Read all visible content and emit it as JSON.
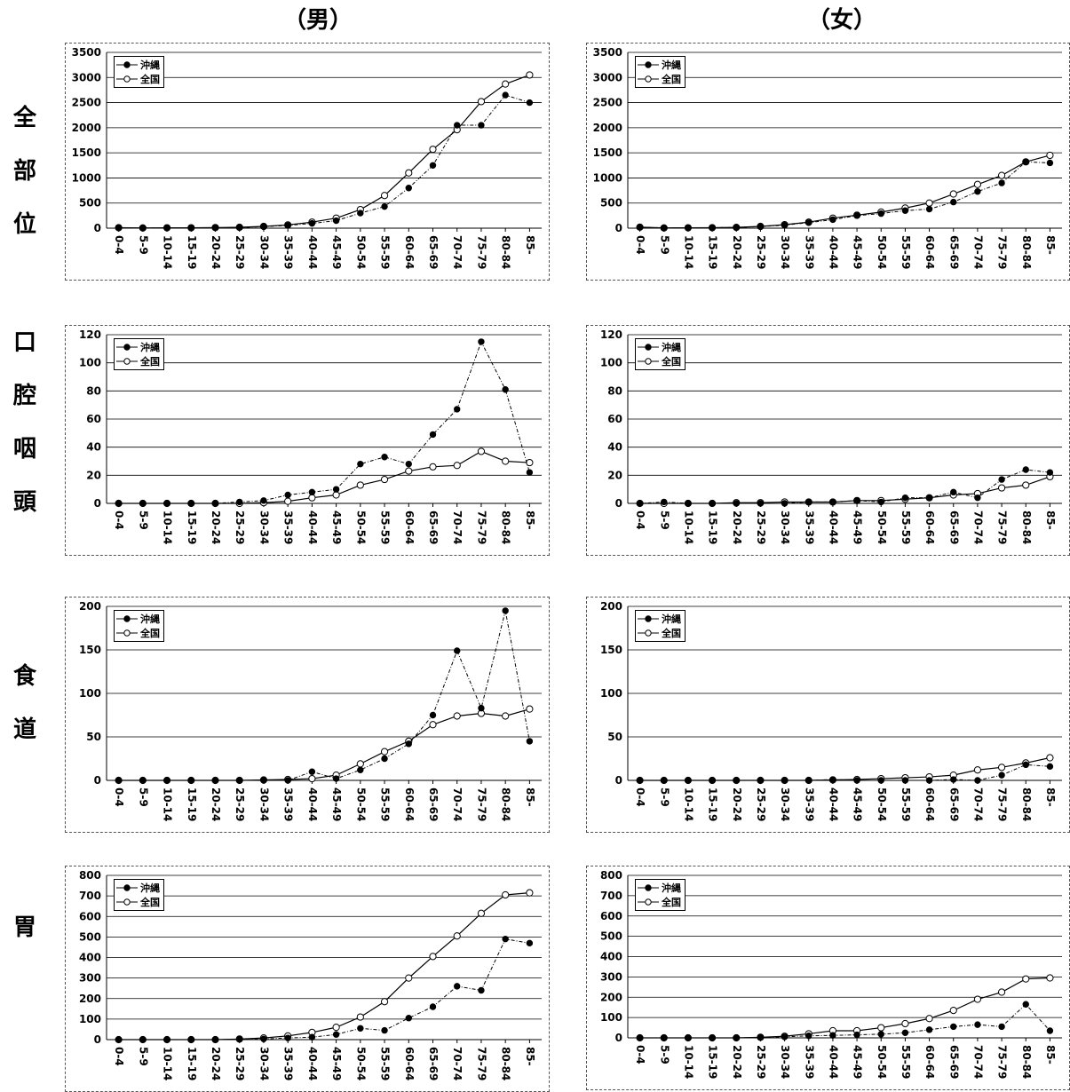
{
  "headers": {
    "male": "（男）",
    "female": "（女）"
  },
  "rows": [
    {
      "id": "all",
      "label": [
        "全",
        "部",
        "位"
      ]
    },
    {
      "id": "oral",
      "label": [
        "口",
        "腔",
        "咽",
        "頭"
      ]
    },
    {
      "id": "eso",
      "label": [
        "食",
        "道"
      ]
    },
    {
      "id": "stom",
      "label": [
        "胃"
      ]
    }
  ],
  "legend": {
    "okinawa": "沖縄",
    "national": "全国"
  },
  "colors": {
    "line": "#000000",
    "grid": "#000000",
    "okinawa_marker": "#000000",
    "national_marker": "#ffffff"
  },
  "chart_data": [
    {
      "id": "all-male",
      "type": "line",
      "categories": [
        "0-4",
        "5-9",
        "10-14",
        "15-19",
        "20-24",
        "25-29",
        "30-34",
        "35-39",
        "40-44",
        "45-49",
        "50-54",
        "55-59",
        "60-64",
        "65-69",
        "70-74",
        "75-79",
        "80-84",
        "85-"
      ],
      "ylim": [
        0,
        3500
      ],
      "yticks": [
        0,
        500,
        1000,
        1500,
        2000,
        2500,
        3000,
        3500
      ],
      "grid": true,
      "legend_position": "top-left",
      "series": [
        {
          "name": "沖縄",
          "values": [
            5,
            3,
            5,
            5,
            8,
            12,
            30,
            55,
            95,
            150,
            300,
            430,
            800,
            1250,
            2050,
            2050,
            2650,
            2500
          ]
        },
        {
          "name": "全国",
          "values": [
            10,
            5,
            8,
            8,
            12,
            18,
            35,
            65,
            120,
            200,
            370,
            650,
            1100,
            1570,
            1960,
            2520,
            2870,
            3050
          ]
        }
      ]
    },
    {
      "id": "all-female",
      "type": "line",
      "categories": [
        "0-4",
        "5-9",
        "10-14",
        "15-19",
        "20-24",
        "25-29",
        "30-34",
        "35-39",
        "40-44",
        "45-49",
        "50-54",
        "55-59",
        "60-64",
        "65-69",
        "70-74",
        "75-79",
        "80-84",
        "85-"
      ],
      "ylim": [
        0,
        3500
      ],
      "yticks": [
        0,
        500,
        1000,
        1500,
        2000,
        2500,
        3000,
        3500
      ],
      "grid": true,
      "legend_position": "top-left",
      "series": [
        {
          "name": "沖縄",
          "values": [
            20,
            5,
            8,
            10,
            15,
            30,
            60,
            110,
            170,
            250,
            290,
            350,
            380,
            520,
            730,
            900,
            1320,
            1300
          ]
        },
        {
          "name": "全国",
          "values": [
            20,
            5,
            8,
            10,
            15,
            35,
            70,
            120,
            200,
            260,
            320,
            400,
            500,
            680,
            870,
            1050,
            1320,
            1450
          ]
        }
      ]
    },
    {
      "id": "oral-male",
      "type": "line",
      "categories": [
        "0-4",
        "5-9",
        "10-14",
        "15-19",
        "20-24",
        "25-29",
        "30-34",
        "35-39",
        "40-44",
        "45-49",
        "50-54",
        "55-59",
        "60-64",
        "65-69",
        "70-74",
        "75-79",
        "80-84",
        "85-"
      ],
      "ylim": [
        0,
        120
      ],
      "yticks": [
        0,
        20,
        40,
        60,
        80,
        100,
        120
      ],
      "grid": true,
      "legend_position": "top-left",
      "series": [
        {
          "name": "沖縄",
          "values": [
            0,
            0,
            0,
            0,
            0,
            1,
            2,
            6,
            8,
            10,
            28,
            33,
            28,
            49,
            67,
            115,
            81,
            22
          ]
        },
        {
          "name": "全国",
          "values": [
            0,
            0,
            0,
            0,
            0,
            0,
            0.5,
            1.5,
            4,
            6,
            13,
            17,
            23,
            26,
            27,
            37,
            30,
            29
          ]
        }
      ]
    },
    {
      "id": "oral-female",
      "type": "line",
      "categories": [
        "0-4",
        "5-9",
        "10-14",
        "15-19",
        "20-24",
        "25-29",
        "30-34",
        "35-39",
        "40-44",
        "45-49",
        "50-54",
        "55-59",
        "60-64",
        "65-69",
        "70-74",
        "75-79",
        "80-84",
        "85-"
      ],
      "ylim": [
        0,
        120
      ],
      "yticks": [
        0,
        20,
        40,
        60,
        80,
        100,
        120
      ],
      "grid": true,
      "legend_position": "top-left",
      "series": [
        {
          "name": "沖縄",
          "values": [
            0,
            1,
            0,
            0,
            0,
            0,
            0,
            1,
            1,
            2,
            1,
            4,
            4,
            8,
            4,
            17,
            24,
            22
          ]
        },
        {
          "name": "全国",
          "values": [
            0,
            0,
            0,
            0,
            0.5,
            0.5,
            1,
            1,
            1,
            2,
            2,
            3,
            4,
            6,
            7,
            11,
            13,
            19
          ]
        }
      ]
    },
    {
      "id": "eso-male",
      "type": "line",
      "categories": [
        "0-4",
        "5-9",
        "10-14",
        "15-19",
        "20-24",
        "25-29",
        "30-34",
        "35-39",
        "40-44",
        "45-49",
        "50-54",
        "55-59",
        "60-64",
        "65-69",
        "70-74",
        "75-79",
        "80-84",
        "85-"
      ],
      "ylim": [
        0,
        200
      ],
      "yticks": [
        0,
        50,
        100,
        150,
        200
      ],
      "grid": true,
      "legend_position": "top-left",
      "series": [
        {
          "name": "沖縄",
          "values": [
            0,
            0,
            0,
            0,
            0,
            0,
            0,
            0,
            10,
            2,
            12,
            25,
            42,
            75,
            149,
            83,
            195,
            45
          ]
        },
        {
          "name": "全国",
          "values": [
            0,
            0,
            0,
            0,
            0,
            0,
            0.5,
            1,
            2,
            6,
            19,
            33,
            45,
            64,
            74,
            77,
            74,
            82
          ]
        }
      ]
    },
    {
      "id": "eso-female",
      "type": "line",
      "categories": [
        "0-4",
        "5-9",
        "10-14",
        "15-19",
        "20-24",
        "25-29",
        "30-34",
        "35-39",
        "40-44",
        "45-49",
        "50-54",
        "55-59",
        "60-64",
        "65-69",
        "70-74",
        "75-79",
        "80-84",
        "85-"
      ],
      "ylim": [
        0,
        200
      ],
      "yticks": [
        0,
        50,
        100,
        150,
        200
      ],
      "grid": true,
      "legend_position": "top-left",
      "series": [
        {
          "name": "沖縄",
          "values": [
            0,
            0,
            0,
            0,
            0,
            0,
            0,
            0,
            1,
            0,
            0,
            0,
            0,
            1,
            0,
            6,
            18,
            16
          ]
        },
        {
          "name": "全国",
          "values": [
            0,
            0,
            0,
            0,
            0,
            0,
            0,
            0,
            0.5,
            1,
            2,
            3,
            4,
            6,
            12,
            15,
            20,
            26
          ]
        }
      ]
    },
    {
      "id": "stom-male",
      "type": "line",
      "categories": [
        "0-4",
        "5-9",
        "10-14",
        "15-19",
        "20-24",
        "25-29",
        "30-34",
        "35-39",
        "40-44",
        "45-49",
        "50-54",
        "55-59",
        "60-64",
        "65-69",
        "70-74",
        "75-79",
        "80-84",
        "85-"
      ],
      "ylim": [
        0,
        800
      ],
      "yticks": [
        0,
        100,
        200,
        300,
        400,
        500,
        600,
        700,
        800
      ],
      "grid": true,
      "legend_position": "top-left",
      "series": [
        {
          "name": "沖縄",
          "values": [
            0,
            0,
            0,
            0,
            0,
            2,
            3,
            8,
            12,
            25,
            55,
            45,
            105,
            160,
            260,
            240,
            490,
            470
          ]
        },
        {
          "name": "全国",
          "values": [
            0,
            0,
            0,
            0,
            0,
            3,
            8,
            18,
            35,
            60,
            110,
            185,
            300,
            405,
            505,
            615,
            705,
            715
          ]
        }
      ]
    },
    {
      "id": "stom-female",
      "type": "line",
      "categories": [
        "0-4",
        "5-9",
        "10-14",
        "15-19",
        "20-24",
        "25-29",
        "30-34",
        "35-39",
        "40-44",
        "45-49",
        "50-54",
        "55-59",
        "60-64",
        "65-69",
        "70-74",
        "75-79",
        "80-84",
        "85-"
      ],
      "ylim": [
        0,
        800
      ],
      "yticks": [
        0,
        100,
        200,
        300,
        400,
        500,
        600,
        700,
        800
      ],
      "grid": true,
      "legend_position": "top-left",
      "series": [
        {
          "name": "沖縄",
          "values": [
            0,
            0,
            0,
            0,
            0,
            2,
            5,
            10,
            12,
            15,
            18,
            25,
            40,
            55,
            65,
            55,
            165,
            35
          ]
        },
        {
          "name": "全国",
          "values": [
            0,
            0,
            0,
            0,
            0,
            3,
            8,
            20,
            35,
            35,
            50,
            70,
            95,
            135,
            190,
            225,
            290,
            295
          ]
        }
      ]
    }
  ]
}
